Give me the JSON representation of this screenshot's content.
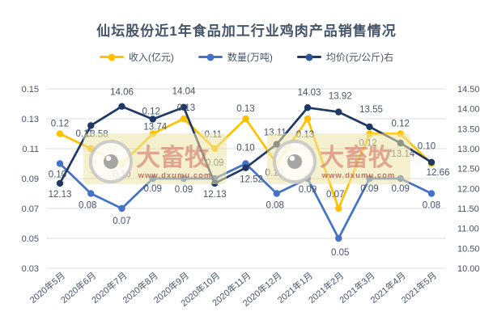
{
  "chart_data": {
    "type": "line",
    "title": "仙坛股份近1年食品加工行业鸡肉产品销售情况",
    "legend_position": "top",
    "grid": true,
    "categories": [
      "2020年5月",
      "2020年6月",
      "2020年7月",
      "2020年8月",
      "2020年9月",
      "2020年10月",
      "2020年11月",
      "2020年12月",
      "2021年1月",
      "2021年2月",
      "2021年3月",
      "2021年4月",
      "2021年5月"
    ],
    "series": [
      {
        "name": "收入(亿元)",
        "color": "#FFC000",
        "axis": "left",
        "values": [
          0.12,
          0.11,
          0.1,
          0.12,
          0.13,
          0.11,
          0.13,
          0.1,
          0.13,
          0.07,
          0.12,
          0.12,
          0.1
        ],
        "labels": [
          "0.12",
          "0.11",
          "0.10",
          "0.12",
          "0.13",
          "0.11",
          "0.13",
          "0.10",
          "0.13",
          "0.07",
          "0.12",
          "0.12",
          "0.10"
        ]
      },
      {
        "name": "数量(万吨)",
        "color": "#4472C4",
        "axis": "left",
        "values": [
          0.1,
          0.08,
          0.07,
          0.09,
          0.09,
          0.09,
          0.1,
          0.08,
          0.09,
          0.05,
          0.09,
          0.09,
          0.08
        ],
        "labels": [
          "0.10",
          "0.08",
          "0.07",
          "0.09",
          "0.09",
          "0.09",
          "0.10",
          "0.08",
          "0.09",
          "0.05",
          "0.09",
          "0.09",
          "0.08"
        ]
      },
      {
        "name": "均价(元/公斤)右",
        "color": "#1F3864",
        "axis": "right",
        "values": [
          12.13,
          13.58,
          14.06,
          13.74,
          14.04,
          12.13,
          12.52,
          13.11,
          14.03,
          13.92,
          13.55,
          13.14,
          12.66
        ],
        "labels": [
          "12.13",
          "13.58",
          "14.06",
          "13.74",
          "14.04",
          "12.13",
          "12.52",
          "13.11",
          "14.03",
          "13.92",
          "13.55",
          "13.14",
          "12.66"
        ]
      }
    ],
    "y_axis_left": {
      "min": 0.03,
      "max": 0.15,
      "ticks": [
        "0.15",
        "0.13",
        "0.11",
        "0.09",
        "0.07",
        "0.05",
        "0.03"
      ]
    },
    "y_axis_right": {
      "min": 10.0,
      "max": 14.5,
      "ticks": [
        "14.50",
        "14.00",
        "13.50",
        "13.00",
        "12.50",
        "12.00",
        "11.50",
        "11.00",
        "10.50",
        "10.00"
      ]
    }
  },
  "watermark": {
    "brand": "大畜牧",
    "url": "www.dxumu.com"
  },
  "colors": {
    "text": "#44546A",
    "grid": "#D9DDE2",
    "watermark_band": "#EDE4A4",
    "watermark_red": "#D0685E",
    "watermark_url_red": "#C34A3E"
  }
}
